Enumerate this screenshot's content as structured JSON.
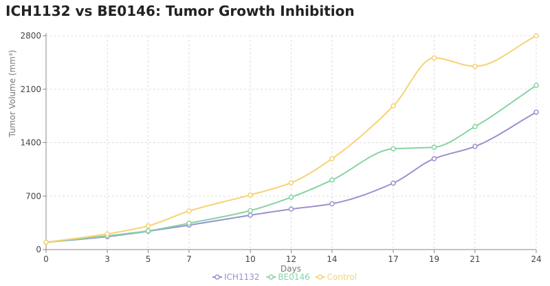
{
  "chart_data": {
    "type": "line",
    "title": "ICH1132 vs BE0146: Tumor Growth Inhibition",
    "xlabel": "Days",
    "ylabel": "Tumor Volume (mm³)",
    "categories": [
      "0",
      "3",
      "5",
      "7",
      "10",
      "12",
      "14",
      "17",
      "19",
      "21",
      "24"
    ],
    "yticks": [
      "0",
      "700",
      "1400",
      "2100",
      "2800"
    ],
    "ylim": [
      0,
      2800
    ],
    "grid": true,
    "legend_position": "bottom",
    "series": [
      {
        "name": "ICH1132",
        "color": "#9b8fd0",
        "values": [
          95,
          170,
          240,
          320,
          450,
          530,
          600,
          870,
          1190,
          1350,
          1800
        ]
      },
      {
        "name": "BE0146",
        "color": "#86d3a3",
        "values": [
          95,
          180,
          245,
          345,
          510,
          685,
          910,
          1320,
          1340,
          1610,
          2150
        ]
      },
      {
        "name": "Control",
        "color": "#f6d272",
        "values": [
          95,
          205,
          310,
          505,
          715,
          875,
          1190,
          1880,
          2510,
          2400,
          2800
        ]
      }
    ]
  }
}
